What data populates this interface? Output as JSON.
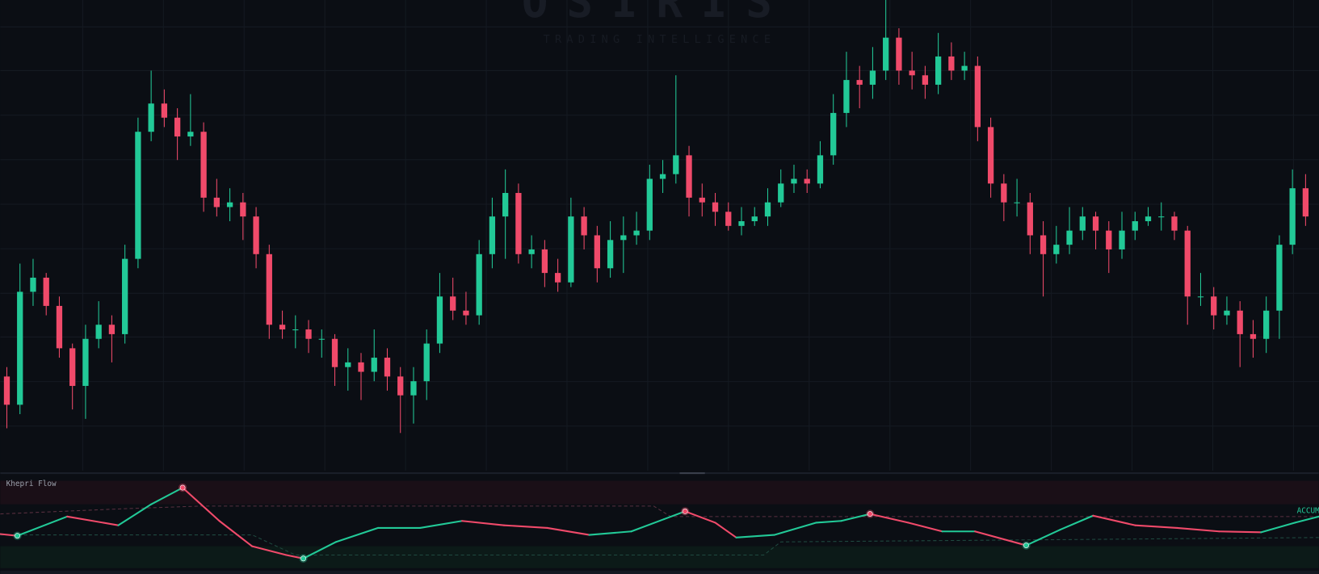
{
  "chart_data": [
    {
      "type": "candlestick",
      "title": "OSIRIS",
      "subtitle": "TRADING INTELLIGENCE",
      "up_color": "#22c997",
      "down_color": "#f04a6a",
      "xlim": [
        -0.5,
        100
      ],
      "ylim": [
        0,
        100
      ],
      "grid": true,
      "ohlc": [
        [
          20,
          22,
          9,
          14
        ],
        [
          14,
          44,
          12,
          38
        ],
        [
          38,
          45,
          35,
          41
        ],
        [
          41,
          42,
          33,
          35
        ],
        [
          35,
          37,
          24,
          26
        ],
        [
          26,
          27,
          13,
          18
        ],
        [
          18,
          31,
          11,
          28
        ],
        [
          28,
          36,
          26,
          31
        ],
        [
          31,
          33,
          23,
          29
        ],
        [
          29,
          48,
          27,
          45
        ],
        [
          45,
          75,
          43,
          72
        ],
        [
          72,
          85,
          70,
          78
        ],
        [
          78,
          81,
          73,
          75
        ],
        [
          75,
          77,
          66,
          71
        ],
        [
          71,
          80,
          69,
          72
        ],
        [
          72,
          74,
          55,
          58
        ],
        [
          58,
          62,
          54,
          56
        ],
        [
          56,
          60,
          53,
          57
        ],
        [
          57,
          59,
          49,
          54
        ],
        [
          54,
          56,
          43,
          46
        ],
        [
          46,
          48,
          28,
          31
        ],
        [
          31,
          34,
          28,
          30
        ],
        [
          30,
          33,
          26,
          30
        ],
        [
          30,
          32,
          25,
          28
        ],
        [
          28,
          30,
          24,
          28
        ],
        [
          28,
          29,
          18,
          22
        ],
        [
          22,
          26,
          17,
          23
        ],
        [
          23,
          25,
          15,
          21
        ],
        [
          21,
          30,
          19,
          24
        ],
        [
          24,
          26,
          17,
          20
        ],
        [
          20,
          22,
          8,
          16
        ],
        [
          16,
          22,
          10,
          19
        ],
        [
          19,
          30,
          15,
          27
        ],
        [
          27,
          42,
          25,
          37
        ],
        [
          37,
          41,
          32,
          34
        ],
        [
          34,
          38,
          31,
          33
        ],
        [
          33,
          49,
          31,
          46
        ],
        [
          46,
          58,
          43,
          54
        ],
        [
          54,
          64,
          45,
          59
        ],
        [
          59,
          61,
          44,
          46
        ],
        [
          46,
          50,
          43,
          47
        ],
        [
          47,
          49,
          39,
          42
        ],
        [
          42,
          45,
          38,
          40
        ],
        [
          40,
          58,
          39,
          54
        ],
        [
          54,
          56,
          47,
          50
        ],
        [
          50,
          52,
          40,
          43
        ],
        [
          43,
          53,
          41,
          49
        ],
        [
          49,
          54,
          42,
          50
        ],
        [
          50,
          55,
          48,
          51
        ],
        [
          51,
          65,
          49,
          62
        ],
        [
          62,
          66,
          59,
          63
        ],
        [
          63,
          84,
          61,
          67
        ],
        [
          67,
          69,
          54,
          58
        ],
        [
          58,
          61,
          54,
          57
        ],
        [
          57,
          59,
          52,
          55
        ],
        [
          55,
          57,
          51,
          52
        ],
        [
          52,
          56,
          50,
          53
        ],
        [
          53,
          56,
          52,
          54
        ],
        [
          54,
          60,
          52,
          57
        ],
        [
          57,
          64,
          56,
          61
        ],
        [
          61,
          65,
          59,
          62
        ],
        [
          62,
          64,
          59,
          61
        ],
        [
          61,
          70,
          60,
          67
        ],
        [
          67,
          80,
          65,
          76
        ],
        [
          76,
          89,
          73,
          83
        ],
        [
          83,
          86,
          77,
          82
        ],
        [
          82,
          90,
          79,
          85
        ],
        [
          85,
          100,
          83,
          92
        ],
        [
          92,
          94,
          82,
          85
        ],
        [
          85,
          89,
          81,
          84
        ],
        [
          84,
          86,
          79,
          82
        ],
        [
          82,
          93,
          80,
          88
        ],
        [
          88,
          91,
          83,
          85
        ],
        [
          85,
          89,
          83,
          86
        ],
        [
          86,
          88,
          70,
          73
        ],
        [
          73,
          75,
          58,
          61
        ],
        [
          61,
          63,
          53,
          57
        ],
        [
          57,
          62,
          54,
          57
        ],
        [
          57,
          59,
          46,
          50
        ],
        [
          50,
          53,
          37,
          46
        ],
        [
          46,
          52,
          44,
          48
        ],
        [
          48,
          56,
          46,
          51
        ],
        [
          51,
          56,
          49,
          54
        ],
        [
          54,
          55,
          47,
          51
        ],
        [
          51,
          53,
          42,
          47
        ],
        [
          47,
          55,
          45,
          51
        ],
        [
          51,
          55,
          49,
          53
        ],
        [
          53,
          56,
          52,
          54
        ],
        [
          54,
          57,
          51,
          54
        ],
        [
          54,
          55,
          49,
          51
        ],
        [
          51,
          52,
          31,
          37
        ],
        [
          37,
          42,
          35,
          37
        ],
        [
          37,
          39,
          30,
          33
        ],
        [
          33,
          37,
          31,
          34
        ],
        [
          34,
          36,
          22,
          29
        ],
        [
          29,
          32,
          24,
          28
        ],
        [
          28,
          37,
          25,
          34
        ],
        [
          34,
          50,
          28,
          48
        ],
        [
          48,
          64,
          46,
          60
        ],
        [
          60,
          63,
          52,
          54
        ]
      ]
    },
    {
      "type": "line",
      "title": "Khepri Flow",
      "annotation": "ACCUM",
      "up_color": "#22c997",
      "down_color": "#f04a6a",
      "xlim": [
        -0.5,
        100
      ],
      "ylim": [
        0,
        100
      ],
      "x": [
        -0.5,
        0.8,
        4.6,
        8.5,
        11,
        13.4,
        16.2,
        18.7,
        21.3,
        22.6,
        25.1,
        28.3,
        31.5,
        34.7,
        37.9,
        41.2,
        44.4,
        47.6,
        50.1,
        51.7,
        54,
        55.6,
        58.5,
        61.7,
        63.6,
        65.8,
        68.7,
        71.3,
        73.8,
        77.7,
        80.3,
        82.8,
        86,
        89.2,
        92.4,
        95.6,
        98.2,
        100
      ],
      "values": [
        39,
        37,
        59,
        49,
        73,
        92,
        54,
        25,
        15,
        11,
        30,
        46,
        46,
        54,
        49,
        46,
        38,
        42,
        56,
        65,
        52,
        35,
        38,
        52,
        54,
        62,
        52,
        42,
        42,
        26,
        44,
        60,
        49,
        46,
        42,
        41,
        52,
        59
      ],
      "signals": {
        "x": [
          0.8,
          13.4,
          22.6,
          51.7,
          65.8,
          77.7
        ],
        "values": [
          37,
          92,
          11,
          65,
          62,
          26
        ],
        "colors": [
          "#22c997",
          "#f04a6a",
          "#22c997",
          "#f04a6a",
          "#f04a6a",
          "#22c997"
        ]
      },
      "upper_band": {
        "x": [
          -0.5,
          9,
          14.8,
          49.3,
          50.6,
          100
        ],
        "values": [
          62,
          68,
          71,
          71,
          59,
          59
        ]
      },
      "lower_band": {
        "x": [
          -0.5,
          18.7,
          22,
          57.7,
          59,
          100
        ],
        "values": [
          38,
          38,
          15,
          15,
          30,
          35
        ]
      }
    }
  ]
}
